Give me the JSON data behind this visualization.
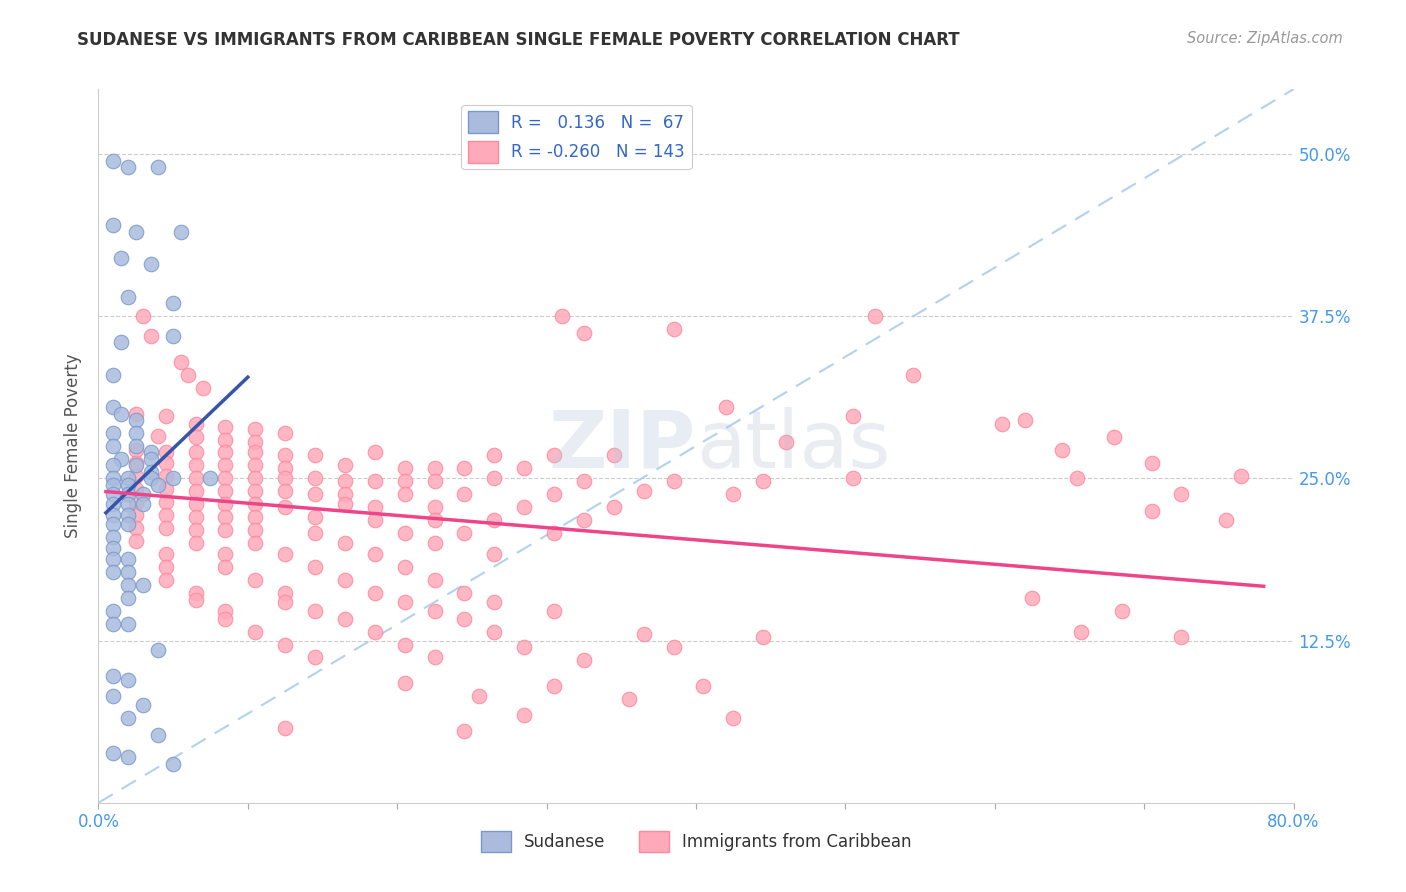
{
  "title": "SUDANESE VS IMMIGRANTS FROM CARIBBEAN SINGLE FEMALE POVERTY CORRELATION CHART",
  "source": "Source: ZipAtlas.com",
  "ylabel": "Single Female Poverty",
  "xlim": [
    0.0,
    0.8
  ],
  "ylim": [
    0.0,
    0.55
  ],
  "yticks": [
    0.125,
    0.25,
    0.375,
    0.5
  ],
  "ytick_labels": [
    "12.5%",
    "25.0%",
    "37.5%",
    "50.0%"
  ],
  "xticks": [
    0.0,
    0.1,
    0.2,
    0.3,
    0.4,
    0.5,
    0.6,
    0.7,
    0.8
  ],
  "xtick_labels": [
    "0.0%",
    "",
    "",
    "",
    "",
    "",
    "",
    "",
    "80.0%"
  ],
  "blue_color": "#AABBDD",
  "blue_edge_color": "#7799CC",
  "pink_color": "#FFAABB",
  "pink_edge_color": "#FF8899",
  "blue_line_color": "#3355AA",
  "pink_line_color": "#EE4488",
  "dashed_line_color": "#AACCEE",
  "R_blue": 0.136,
  "N_blue": 67,
  "R_pink": -0.26,
  "N_pink": 143,
  "blue_scatter": [
    [
      0.01,
      0.495
    ],
    [
      0.02,
      0.49
    ],
    [
      0.04,
      0.49
    ],
    [
      0.01,
      0.445
    ],
    [
      0.025,
      0.44
    ],
    [
      0.055,
      0.44
    ],
    [
      0.015,
      0.42
    ],
    [
      0.035,
      0.415
    ],
    [
      0.02,
      0.39
    ],
    [
      0.05,
      0.385
    ],
    [
      0.015,
      0.355
    ],
    [
      0.05,
      0.36
    ],
    [
      0.01,
      0.33
    ],
    [
      0.01,
      0.305
    ],
    [
      0.015,
      0.3
    ],
    [
      0.025,
      0.295
    ],
    [
      0.01,
      0.285
    ],
    [
      0.025,
      0.285
    ],
    [
      0.01,
      0.275
    ],
    [
      0.025,
      0.275
    ],
    [
      0.035,
      0.27
    ],
    [
      0.015,
      0.265
    ],
    [
      0.035,
      0.265
    ],
    [
      0.01,
      0.26
    ],
    [
      0.025,
      0.26
    ],
    [
      0.035,
      0.255
    ],
    [
      0.01,
      0.25
    ],
    [
      0.02,
      0.25
    ],
    [
      0.035,
      0.25
    ],
    [
      0.05,
      0.25
    ],
    [
      0.075,
      0.25
    ],
    [
      0.01,
      0.245
    ],
    [
      0.02,
      0.245
    ],
    [
      0.04,
      0.245
    ],
    [
      0.01,
      0.238
    ],
    [
      0.02,
      0.238
    ],
    [
      0.03,
      0.238
    ],
    [
      0.01,
      0.23
    ],
    [
      0.02,
      0.23
    ],
    [
      0.03,
      0.23
    ],
    [
      0.01,
      0.222
    ],
    [
      0.02,
      0.222
    ],
    [
      0.01,
      0.215
    ],
    [
      0.02,
      0.215
    ],
    [
      0.01,
      0.205
    ],
    [
      0.01,
      0.196
    ],
    [
      0.01,
      0.188
    ],
    [
      0.02,
      0.188
    ],
    [
      0.01,
      0.178
    ],
    [
      0.02,
      0.178
    ],
    [
      0.02,
      0.168
    ],
    [
      0.03,
      0.168
    ],
    [
      0.02,
      0.158
    ],
    [
      0.01,
      0.148
    ],
    [
      0.01,
      0.138
    ],
    [
      0.02,
      0.138
    ],
    [
      0.04,
      0.118
    ],
    [
      0.01,
      0.098
    ],
    [
      0.02,
      0.095
    ],
    [
      0.01,
      0.082
    ],
    [
      0.03,
      0.075
    ],
    [
      0.02,
      0.065
    ],
    [
      0.04,
      0.052
    ],
    [
      0.01,
      0.038
    ],
    [
      0.02,
      0.035
    ],
    [
      0.05,
      0.03
    ]
  ],
  "pink_scatter": [
    [
      0.03,
      0.375
    ],
    [
      0.035,
      0.36
    ],
    [
      0.055,
      0.34
    ],
    [
      0.06,
      0.33
    ],
    [
      0.07,
      0.32
    ],
    [
      0.31,
      0.375
    ],
    [
      0.325,
      0.362
    ],
    [
      0.385,
      0.365
    ],
    [
      0.52,
      0.375
    ],
    [
      0.545,
      0.33
    ],
    [
      0.42,
      0.305
    ],
    [
      0.505,
      0.298
    ],
    [
      0.025,
      0.3
    ],
    [
      0.045,
      0.298
    ],
    [
      0.065,
      0.292
    ],
    [
      0.085,
      0.29
    ],
    [
      0.105,
      0.288
    ],
    [
      0.125,
      0.285
    ],
    [
      0.04,
      0.283
    ],
    [
      0.065,
      0.282
    ],
    [
      0.085,
      0.28
    ],
    [
      0.105,
      0.278
    ],
    [
      0.025,
      0.272
    ],
    [
      0.045,
      0.27
    ],
    [
      0.065,
      0.27
    ],
    [
      0.085,
      0.27
    ],
    [
      0.105,
      0.27
    ],
    [
      0.125,
      0.268
    ],
    [
      0.145,
      0.268
    ],
    [
      0.185,
      0.27
    ],
    [
      0.265,
      0.268
    ],
    [
      0.305,
      0.268
    ],
    [
      0.345,
      0.268
    ],
    [
      0.025,
      0.262
    ],
    [
      0.045,
      0.262
    ],
    [
      0.065,
      0.26
    ],
    [
      0.085,
      0.26
    ],
    [
      0.105,
      0.26
    ],
    [
      0.125,
      0.258
    ],
    [
      0.165,
      0.26
    ],
    [
      0.205,
      0.258
    ],
    [
      0.225,
      0.258
    ],
    [
      0.245,
      0.258
    ],
    [
      0.285,
      0.258
    ],
    [
      0.025,
      0.252
    ],
    [
      0.045,
      0.252
    ],
    [
      0.065,
      0.25
    ],
    [
      0.085,
      0.25
    ],
    [
      0.105,
      0.25
    ],
    [
      0.125,
      0.25
    ],
    [
      0.145,
      0.25
    ],
    [
      0.165,
      0.248
    ],
    [
      0.185,
      0.248
    ],
    [
      0.205,
      0.248
    ],
    [
      0.225,
      0.248
    ],
    [
      0.265,
      0.25
    ],
    [
      0.325,
      0.248
    ],
    [
      0.385,
      0.248
    ],
    [
      0.445,
      0.248
    ],
    [
      0.505,
      0.25
    ],
    [
      0.025,
      0.242
    ],
    [
      0.045,
      0.242
    ],
    [
      0.065,
      0.24
    ],
    [
      0.085,
      0.24
    ],
    [
      0.105,
      0.24
    ],
    [
      0.125,
      0.24
    ],
    [
      0.145,
      0.238
    ],
    [
      0.165,
      0.238
    ],
    [
      0.205,
      0.238
    ],
    [
      0.245,
      0.238
    ],
    [
      0.305,
      0.238
    ],
    [
      0.365,
      0.24
    ],
    [
      0.425,
      0.238
    ],
    [
      0.025,
      0.232
    ],
    [
      0.045,
      0.232
    ],
    [
      0.065,
      0.23
    ],
    [
      0.085,
      0.23
    ],
    [
      0.105,
      0.23
    ],
    [
      0.125,
      0.228
    ],
    [
      0.165,
      0.23
    ],
    [
      0.185,
      0.228
    ],
    [
      0.225,
      0.228
    ],
    [
      0.285,
      0.228
    ],
    [
      0.345,
      0.228
    ],
    [
      0.025,
      0.222
    ],
    [
      0.045,
      0.222
    ],
    [
      0.065,
      0.22
    ],
    [
      0.085,
      0.22
    ],
    [
      0.105,
      0.22
    ],
    [
      0.145,
      0.22
    ],
    [
      0.185,
      0.218
    ],
    [
      0.225,
      0.218
    ],
    [
      0.265,
      0.218
    ],
    [
      0.325,
      0.218
    ],
    [
      0.025,
      0.212
    ],
    [
      0.045,
      0.212
    ],
    [
      0.065,
      0.21
    ],
    [
      0.085,
      0.21
    ],
    [
      0.105,
      0.21
    ],
    [
      0.145,
      0.208
    ],
    [
      0.205,
      0.208
    ],
    [
      0.245,
      0.208
    ],
    [
      0.305,
      0.208
    ],
    [
      0.025,
      0.202
    ],
    [
      0.065,
      0.2
    ],
    [
      0.105,
      0.2
    ],
    [
      0.165,
      0.2
    ],
    [
      0.225,
      0.2
    ],
    [
      0.045,
      0.192
    ],
    [
      0.085,
      0.192
    ],
    [
      0.125,
      0.192
    ],
    [
      0.185,
      0.192
    ],
    [
      0.265,
      0.192
    ],
    [
      0.045,
      0.182
    ],
    [
      0.085,
      0.182
    ],
    [
      0.145,
      0.182
    ],
    [
      0.205,
      0.182
    ],
    [
      0.045,
      0.172
    ],
    [
      0.105,
      0.172
    ],
    [
      0.165,
      0.172
    ],
    [
      0.225,
      0.172
    ],
    [
      0.065,
      0.162
    ],
    [
      0.125,
      0.162
    ],
    [
      0.185,
      0.162
    ],
    [
      0.245,
      0.162
    ],
    [
      0.065,
      0.156
    ],
    [
      0.125,
      0.155
    ],
    [
      0.205,
      0.155
    ],
    [
      0.265,
      0.155
    ],
    [
      0.085,
      0.148
    ],
    [
      0.145,
      0.148
    ],
    [
      0.225,
      0.148
    ],
    [
      0.305,
      0.148
    ],
    [
      0.085,
      0.142
    ],
    [
      0.165,
      0.142
    ],
    [
      0.245,
      0.142
    ],
    [
      0.105,
      0.132
    ],
    [
      0.185,
      0.132
    ],
    [
      0.265,
      0.132
    ],
    [
      0.365,
      0.13
    ],
    [
      0.445,
      0.128
    ],
    [
      0.125,
      0.122
    ],
    [
      0.205,
      0.122
    ],
    [
      0.285,
      0.12
    ],
    [
      0.385,
      0.12
    ],
    [
      0.145,
      0.112
    ],
    [
      0.225,
      0.112
    ],
    [
      0.325,
      0.11
    ],
    [
      0.205,
      0.092
    ],
    [
      0.305,
      0.09
    ],
    [
      0.405,
      0.09
    ],
    [
      0.255,
      0.082
    ],
    [
      0.355,
      0.08
    ],
    [
      0.285,
      0.068
    ],
    [
      0.425,
      0.065
    ],
    [
      0.125,
      0.058
    ],
    [
      0.245,
      0.055
    ],
    [
      0.62,
      0.295
    ],
    [
      0.68,
      0.282
    ],
    [
      0.655,
      0.25
    ],
    [
      0.725,
      0.238
    ],
    [
      0.705,
      0.225
    ],
    [
      0.755,
      0.218
    ],
    [
      0.625,
      0.158
    ],
    [
      0.685,
      0.148
    ],
    [
      0.658,
      0.132
    ],
    [
      0.725,
      0.128
    ],
    [
      0.605,
      0.292
    ],
    [
      0.645,
      0.272
    ],
    [
      0.705,
      0.262
    ],
    [
      0.765,
      0.252
    ],
    [
      0.46,
      0.278
    ]
  ]
}
